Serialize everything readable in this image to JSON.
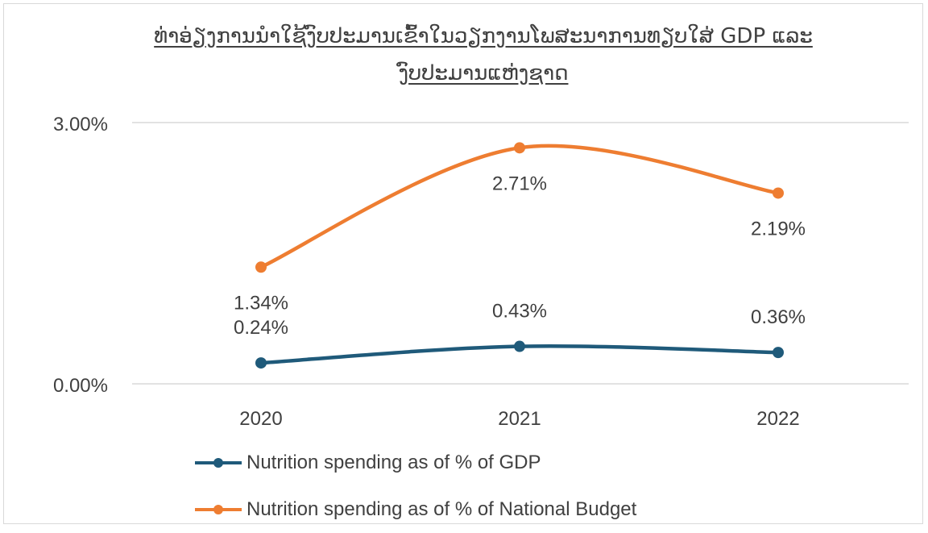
{
  "chart_data": {
    "type": "line",
    "title_line1": "ທ່າອ່ຽງການນຳໃຊ້ງົບປະມານເຂົ້າໃນວຽກງານໂພສະນາການທຽບໃສ່ GDP ແລະ",
    "title_line2": "ງົບປະມານແຫ່ງຊາດ",
    "categories": [
      "2020",
      "2021",
      "2022"
    ],
    "y_ticks": [
      "3.00%",
      "0.00%"
    ],
    "ylim": [
      0,
      3
    ],
    "grid": true,
    "legend_position": "bottom",
    "smooth": true,
    "series": [
      {
        "name": "Nutrition spending as of % of GDP",
        "values": [
          0.24,
          0.43,
          0.36
        ],
        "labels": [
          "0.24%",
          "0.43%",
          "0.36%"
        ],
        "color": "#1f5a7a"
      },
      {
        "name": "Nutrition spending as of % of National Budget",
        "values": [
          1.34,
          2.71,
          2.19
        ],
        "labels": [
          "1.34%",
          "2.71%",
          "2.19%"
        ],
        "color": "#ee7d31"
      }
    ]
  }
}
